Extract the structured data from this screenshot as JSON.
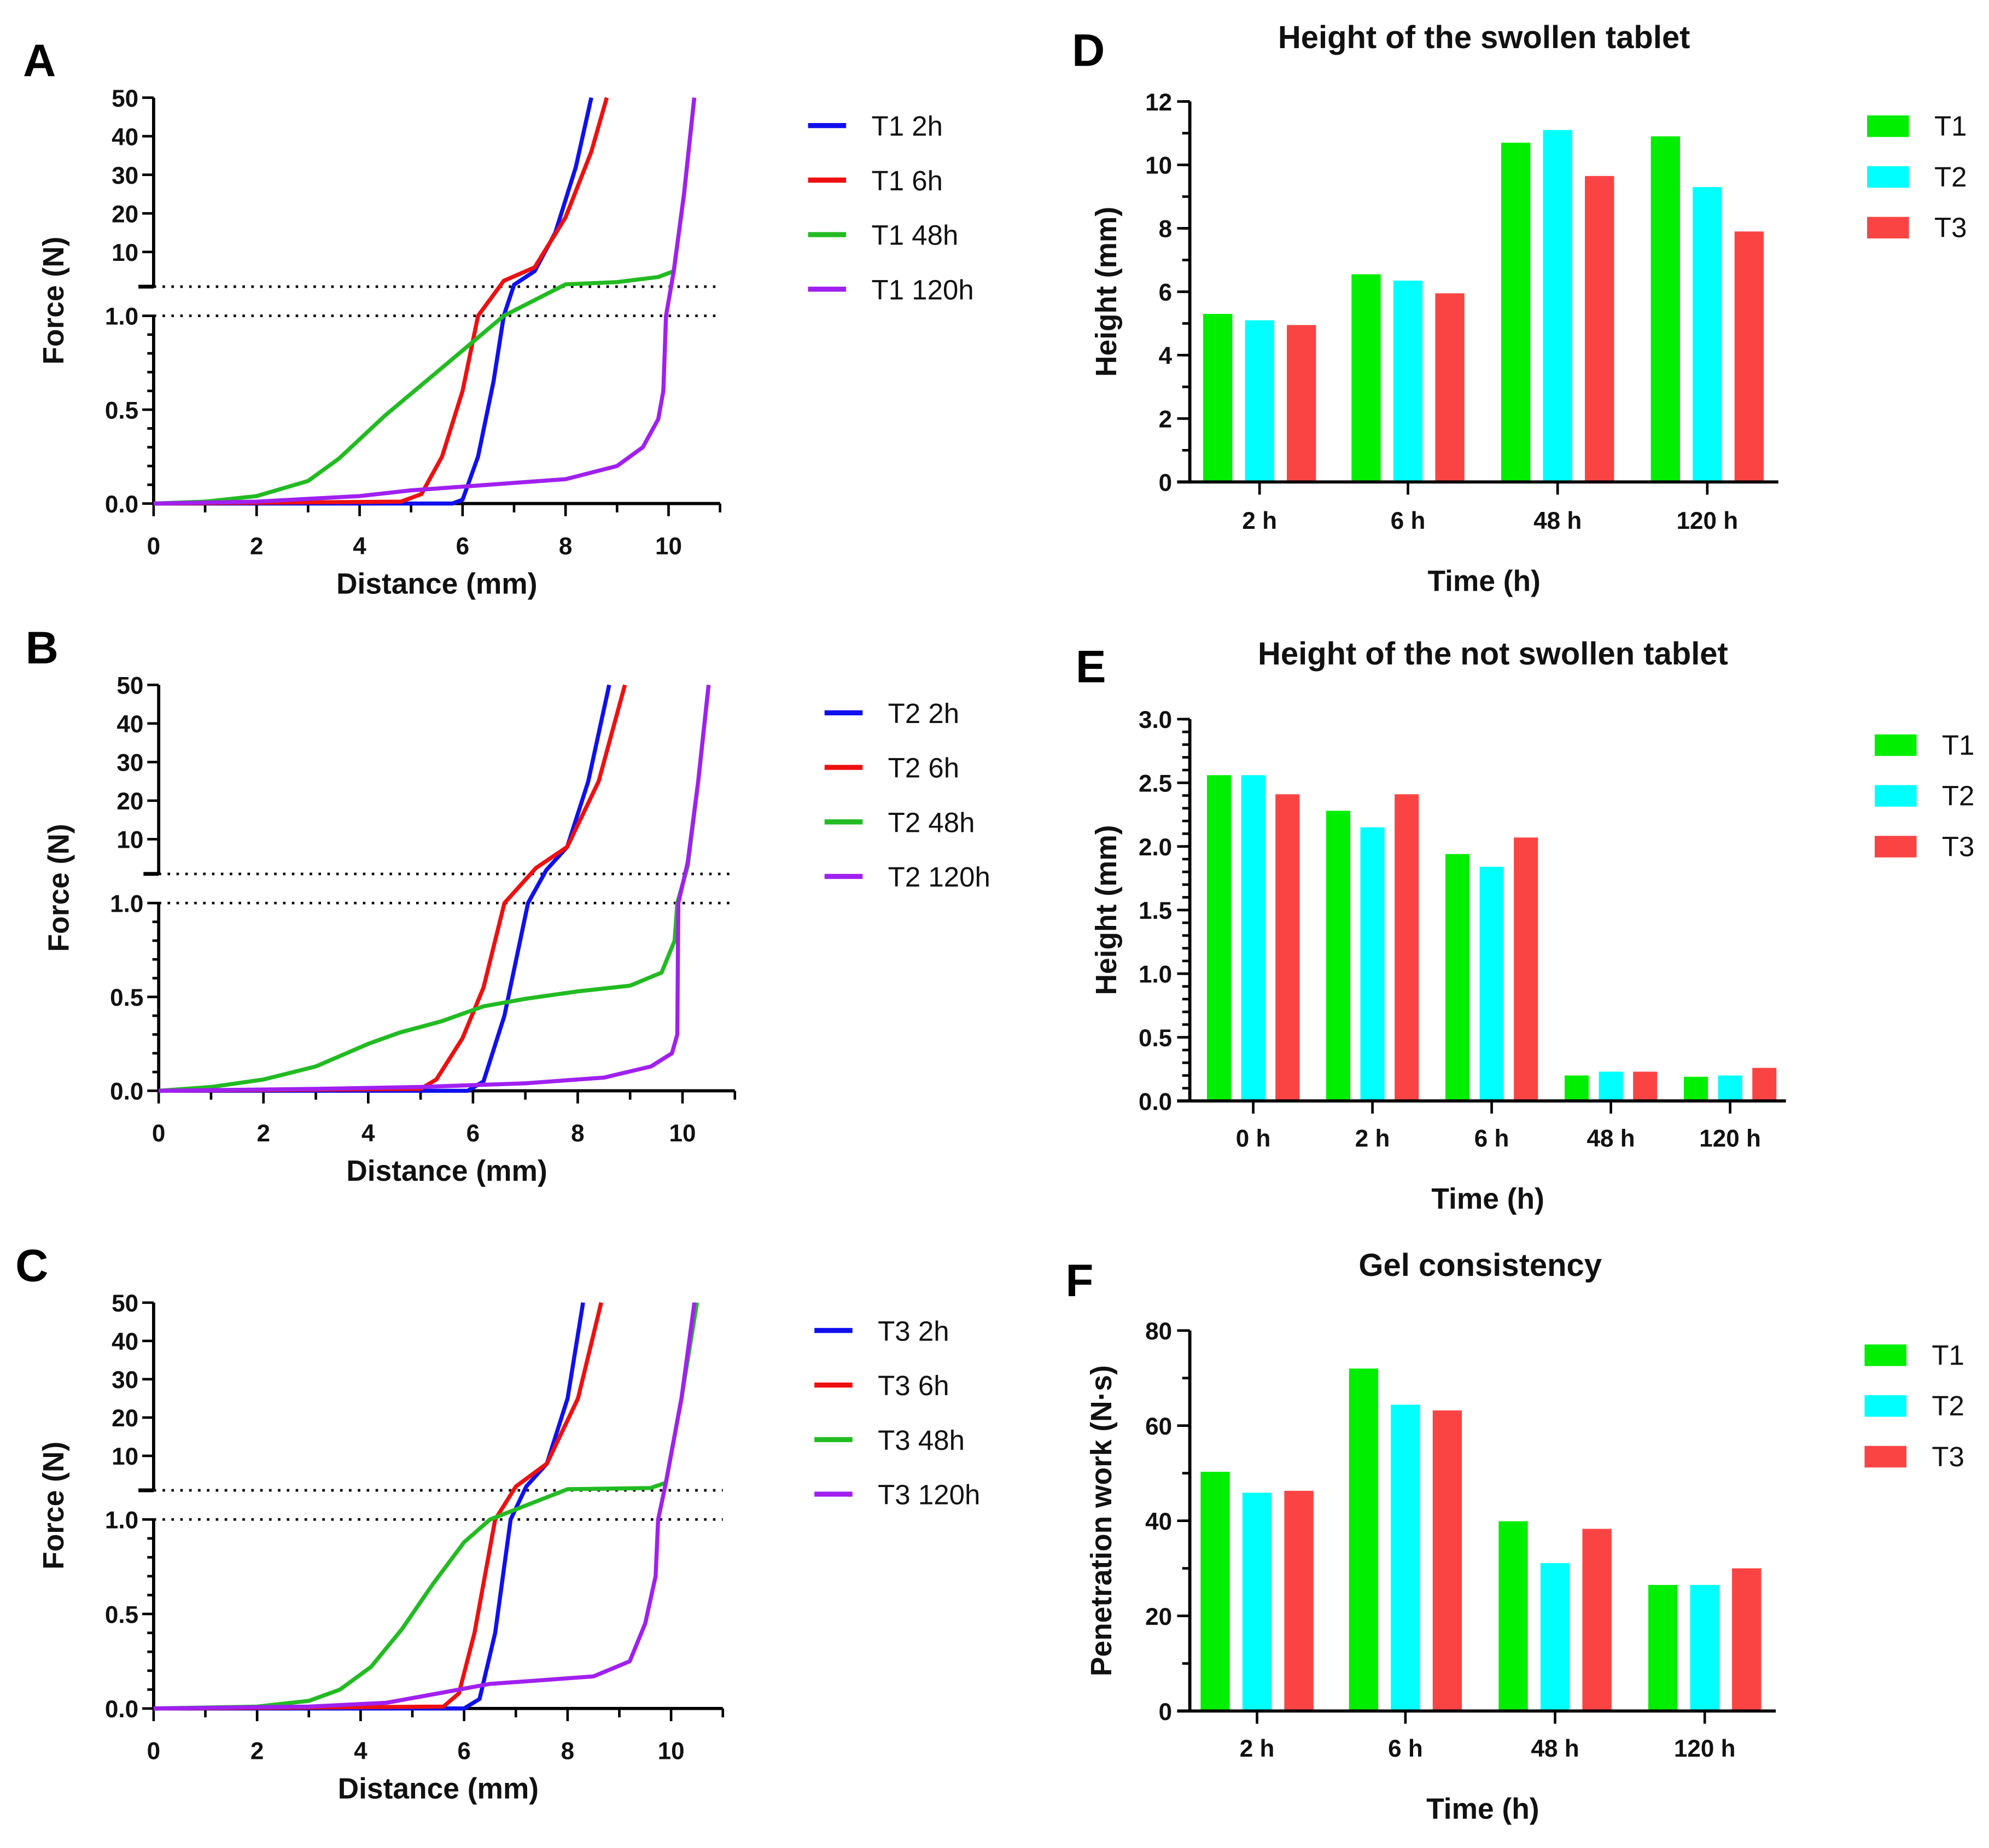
{
  "chart_data": [
    {
      "panel": "A",
      "type": "line",
      "xlabel": "Distance (mm)",
      "ylabel": "Force (N)",
      "xlim": [
        0,
        11
      ],
      "xticks": [
        0,
        2,
        4,
        6,
        8,
        10
      ],
      "y_broken_axis": {
        "lower": [
          0,
          1.0
        ],
        "upper": [
          1,
          50
        ]
      },
      "yticks_lower": [
        "0.0",
        "0.5",
        "1.0"
      ],
      "yticks_upper": [
        "10",
        "20",
        "30",
        "40",
        "50"
      ],
      "legend": "right",
      "series": [
        {
          "name": "T1 2h",
          "color": "#1010ee",
          "points": [
            [
              0,
              0
            ],
            [
              5.8,
              0
            ],
            [
              6.0,
              0.02
            ],
            [
              6.3,
              0.25
            ],
            [
              6.6,
              0.65
            ],
            [
              6.8,
              1.0
            ],
            [
              7.0,
              1.5
            ],
            [
              7.4,
              5
            ],
            [
              7.8,
              15
            ],
            [
              8.2,
              32
            ],
            [
              8.5,
              50
            ]
          ]
        },
        {
          "name": "T1 6h",
          "color": "#ee1010",
          "points": [
            [
              0,
              0
            ],
            [
              4.8,
              0.01
            ],
            [
              5.2,
              0.05
            ],
            [
              5.6,
              0.25
            ],
            [
              6.0,
              0.6
            ],
            [
              6.3,
              1.0
            ],
            [
              6.8,
              2.5
            ],
            [
              7.4,
              6
            ],
            [
              8.0,
              19
            ],
            [
              8.5,
              36
            ],
            [
              8.8,
              50
            ]
          ]
        },
        {
          "name": "T1 48h",
          "color": "#22bb22",
          "points": [
            [
              0,
              0
            ],
            [
              1,
              0.01
            ],
            [
              2,
              0.04
            ],
            [
              3,
              0.12
            ],
            [
              3.6,
              0.24
            ],
            [
              4.5,
              0.47
            ],
            [
              5.5,
              0.7
            ],
            [
              6.8,
              1.0
            ],
            [
              8,
              1.6
            ],
            [
              9,
              2.2
            ],
            [
              9.8,
              3.5
            ],
            [
              10.1,
              5
            ],
            [
              10.3,
              25
            ],
            [
              10.5,
              50
            ]
          ]
        },
        {
          "name": "T1 120h",
          "color": "#a020f0",
          "points": [
            [
              0,
              0
            ],
            [
              2,
              0.01
            ],
            [
              4,
              0.04
            ],
            [
              5,
              0.07
            ],
            [
              6,
              0.09
            ],
            [
              7,
              0.11
            ],
            [
              8,
              0.13
            ],
            [
              9,
              0.2
            ],
            [
              9.5,
              0.3
            ],
            [
              9.8,
              0.45
            ],
            [
              9.9,
              0.6
            ],
            [
              9.95,
              1.0
            ],
            [
              10.1,
              5
            ],
            [
              10.3,
              25
            ],
            [
              10.5,
              50
            ]
          ]
        }
      ]
    },
    {
      "panel": "B",
      "type": "line",
      "xlabel": "Distance (mm)",
      "ylabel": "Force (N)",
      "xlim": [
        0,
        11
      ],
      "xticks": [
        0,
        2,
        4,
        6,
        8,
        10
      ],
      "y_broken_axis": {
        "lower": [
          0,
          1.0
        ],
        "upper": [
          1,
          50
        ]
      },
      "yticks_lower": [
        "0.0",
        "0.5",
        "1.0"
      ],
      "yticks_upper": [
        "10",
        "20",
        "30",
        "40",
        "50"
      ],
      "legend": "right",
      "series": [
        {
          "name": "T2 2h",
          "color": "#1010ee",
          "points": [
            [
              0,
              0
            ],
            [
              5.9,
              0
            ],
            [
              6.2,
              0.05
            ],
            [
              6.6,
              0.4
            ],
            [
              7.05,
              1.0
            ],
            [
              7.4,
              2
            ],
            [
              7.8,
              8
            ],
            [
              8.2,
              25
            ],
            [
              8.6,
              50
            ]
          ]
        },
        {
          "name": "T2 6h",
          "color": "#ee1010",
          "points": [
            [
              0,
              0
            ],
            [
              5.0,
              0.01
            ],
            [
              5.3,
              0.06
            ],
            [
              5.8,
              0.28
            ],
            [
              6.2,
              0.55
            ],
            [
              6.6,
              1.0
            ],
            [
              7.2,
              2.5
            ],
            [
              7.8,
              8
            ],
            [
              8.4,
              25
            ],
            [
              8.9,
              50
            ]
          ]
        },
        {
          "name": "T2 48h",
          "color": "#22bb22",
          "points": [
            [
              0,
              0
            ],
            [
              1,
              0.02
            ],
            [
              2,
              0.06
            ],
            [
              3,
              0.13
            ],
            [
              4,
              0.25
            ],
            [
              4.6,
              0.31
            ],
            [
              5.4,
              0.37
            ],
            [
              6.2,
              0.45
            ],
            [
              7,
              0.49
            ],
            [
              8,
              0.53
            ],
            [
              9,
              0.56
            ],
            [
              9.6,
              0.63
            ],
            [
              9.85,
              0.8
            ],
            [
              9.9,
              1.0
            ],
            [
              10.1,
              3
            ],
            [
              10.3,
              25
            ],
            [
              10.5,
              50
            ]
          ]
        },
        {
          "name": "T2 120h",
          "color": "#a020f0",
          "points": [
            [
              0,
              0
            ],
            [
              3,
              0.01
            ],
            [
              5,
              0.02
            ],
            [
              7,
              0.04
            ],
            [
              8.5,
              0.07
            ],
            [
              9.4,
              0.13
            ],
            [
              9.8,
              0.2
            ],
            [
              9.9,
              0.3
            ],
            [
              9.92,
              1.0
            ],
            [
              10.1,
              4
            ],
            [
              10.3,
              25
            ],
            [
              10.5,
              50
            ]
          ]
        }
      ]
    },
    {
      "panel": "C",
      "type": "line",
      "xlabel": "Distance (mm)",
      "ylabel": "Force (N)",
      "xlim": [
        0,
        11
      ],
      "xticks": [
        0,
        2,
        4,
        6,
        8,
        10
      ],
      "y_broken_axis": {
        "lower": [
          0,
          1.0
        ],
        "upper": [
          1,
          50
        ]
      },
      "yticks_lower": [
        "0.0",
        "0.5",
        "1.0"
      ],
      "yticks_upper": [
        "10",
        "20",
        "30",
        "40",
        "50"
      ],
      "legend": "right",
      "series": [
        {
          "name": "T3 2h",
          "color": "#1010ee",
          "points": [
            [
              0,
              0
            ],
            [
              6.0,
              0
            ],
            [
              6.3,
              0.05
            ],
            [
              6.6,
              0.4
            ],
            [
              6.9,
              1.0
            ],
            [
              7.2,
              2
            ],
            [
              7.6,
              8
            ],
            [
              8.0,
              25
            ],
            [
              8.3,
              50
            ]
          ]
        },
        {
          "name": "T3 6h",
          "color": "#ee1010",
          "points": [
            [
              0,
              0
            ],
            [
              5.6,
              0.01
            ],
            [
              5.9,
              0.08
            ],
            [
              6.2,
              0.4
            ],
            [
              6.6,
              1.0
            ],
            [
              7.0,
              2
            ],
            [
              7.6,
              8
            ],
            [
              8.2,
              25
            ],
            [
              8.65,
              50
            ]
          ]
        },
        {
          "name": "T3 48h",
          "color": "#22bb22",
          "points": [
            [
              0,
              0
            ],
            [
              2,
              0.01
            ],
            [
              3,
              0.04
            ],
            [
              3.6,
              0.1
            ],
            [
              4.2,
              0.22
            ],
            [
              4.8,
              0.42
            ],
            [
              5.4,
              0.66
            ],
            [
              6.0,
              0.88
            ],
            [
              6.5,
              1.0
            ],
            [
              8,
              1.3
            ],
            [
              9.6,
              1.6
            ],
            [
              9.9,
              3
            ],
            [
              10.2,
              25
            ],
            [
              10.5,
              50
            ]
          ]
        },
        {
          "name": "T3 120h",
          "color": "#a020f0",
          "points": [
            [
              0,
              0
            ],
            [
              3,
              0.01
            ],
            [
              4.5,
              0.03
            ],
            [
              5.5,
              0.08
            ],
            [
              6.5,
              0.13
            ],
            [
              7.5,
              0.15
            ],
            [
              8.5,
              0.17
            ],
            [
              9.2,
              0.25
            ],
            [
              9.5,
              0.45
            ],
            [
              9.7,
              0.7
            ],
            [
              9.75,
              1.0
            ],
            [
              9.9,
              3
            ],
            [
              10.2,
              25
            ],
            [
              10.45,
              50
            ]
          ]
        }
      ]
    },
    {
      "panel": "D",
      "type": "bar",
      "title": "Height of the swollen tablet",
      "xlabel": "Time (h)",
      "ylabel": "Height (mm)",
      "ylim": [
        0,
        12
      ],
      "yticks": [
        0,
        2,
        4,
        6,
        8,
        10,
        12
      ],
      "categories": [
        "2 h",
        "6 h",
        "48 h",
        "120 h"
      ],
      "legend": "right",
      "series": [
        {
          "name": "T1",
          "color": "#00ee00",
          "values": [
            5.3,
            6.55,
            10.7,
            10.9
          ]
        },
        {
          "name": "T2",
          "color": "#00ffff",
          "values": [
            5.1,
            6.35,
            11.1,
            9.3
          ]
        },
        {
          "name": "T3",
          "color": "#fa4444",
          "values": [
            4.95,
            5.95,
            9.65,
            7.9
          ]
        }
      ]
    },
    {
      "panel": "E",
      "type": "bar",
      "title": "Height of the not swollen tablet",
      "xlabel": "Time (h)",
      "ylabel": "Height (mm)",
      "ylim": [
        0,
        3.0
      ],
      "yticks": [
        "0.0",
        "0.5",
        "1.0",
        "1.5",
        "2.0",
        "2.5",
        "3.0"
      ],
      "categories": [
        "0 h",
        "2 h",
        "6 h",
        "48 h",
        "120 h"
      ],
      "legend": "right",
      "series": [
        {
          "name": "T1",
          "color": "#00ee00",
          "values": [
            2.56,
            2.28,
            1.94,
            0.2,
            0.19
          ]
        },
        {
          "name": "T2",
          "color": "#00ffff",
          "values": [
            2.56,
            2.15,
            1.84,
            0.23,
            0.2
          ]
        },
        {
          "name": "T3",
          "color": "#fa4444",
          "values": [
            2.41,
            2.41,
            2.07,
            0.23,
            0.26
          ]
        }
      ]
    },
    {
      "panel": "F",
      "type": "bar",
      "title": "Gel consistency",
      "xlabel": "Time (h)",
      "ylabel": "Penetration work (N·s)",
      "ylim": [
        0,
        80
      ],
      "yticks": [
        0,
        20,
        40,
        60,
        80
      ],
      "categories": [
        "2 h",
        "6 h",
        "48 h",
        "120 h"
      ],
      "legend": "right",
      "series": [
        {
          "name": "T1",
          "color": "#00ee00",
          "values": [
            50.3,
            72,
            39.9,
            26.5
          ]
        },
        {
          "name": "T2",
          "color": "#00ffff",
          "values": [
            45.9,
            64.4,
            31.1,
            26.5
          ]
        },
        {
          "name": "T3",
          "color": "#fa4444",
          "values": [
            46.3,
            63.2,
            38.3,
            30
          ]
        }
      ]
    }
  ]
}
